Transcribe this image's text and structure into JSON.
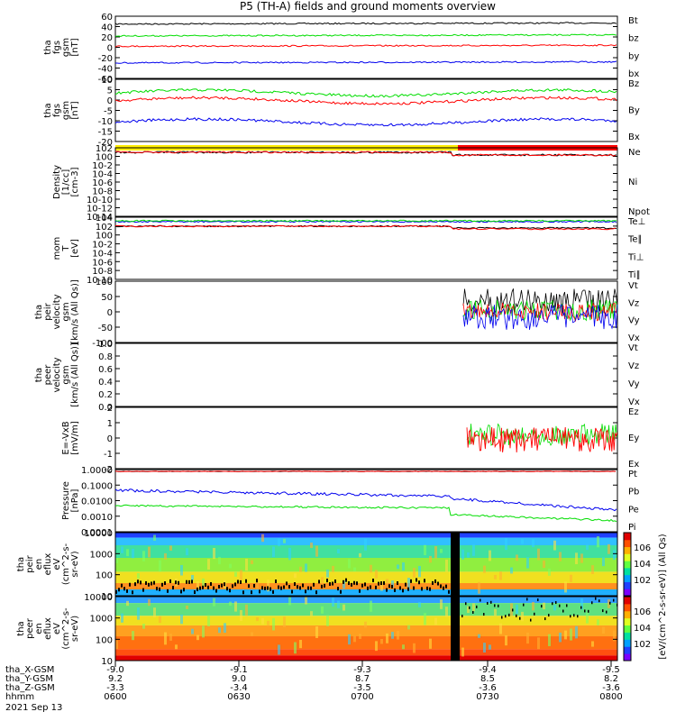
{
  "title": "P5 (TH-A) fields and ground moments overview",
  "colors": {
    "black": "#000000",
    "red": "#ff0000",
    "green": "#00dd00",
    "blue": "#0000ee",
    "yellow": "#ffee00"
  },
  "chart_data": [
    {
      "id": "fgs_gsm",
      "type": "line",
      "ylabel": [
        "tha",
        "fgs",
        "gsm",
        "[nT]"
      ],
      "yticks": [
        "60",
        "40",
        "20",
        "0",
        "-20",
        "-40",
        "-60"
      ],
      "ylim": [
        -60,
        60
      ],
      "series": [
        {
          "name": "Bt",
          "color": "#000000",
          "level": 45
        },
        {
          "name": "bz",
          "color": "#ff0000",
          "level": 2
        },
        {
          "name": "by",
          "color": "#00dd00",
          "level": 22
        },
        {
          "name": "bx",
          "color": "#0000ee",
          "level": -30
        }
      ]
    },
    {
      "id": "fgs_gsm_zoom",
      "type": "line",
      "ylabel": [
        "tha",
        "fgs",
        "gsm",
        "[nT]"
      ],
      "yticks": [
        "10",
        "5",
        "0",
        "-5",
        "-10",
        "-15",
        "-20"
      ],
      "ylim": [
        -22,
        10
      ],
      "series": [
        {
          "name": "Bz",
          "color": "#ff0000",
          "level": -1
        },
        {
          "name": "By",
          "color": "#00dd00",
          "level": 3
        },
        {
          "name": "Bx",
          "color": "#0000ee",
          "level": -12
        }
      ]
    },
    {
      "id": "density",
      "type": "line",
      "ylabel": [
        "Density",
        "[1/cc]",
        "[cm-3]"
      ],
      "yticks": [
        "10^2",
        "10^0",
        "10^-2",
        "10^-4",
        "10^-6",
        "10^-8",
        "10^-10",
        "10^-12",
        "10^-14"
      ],
      "series": [
        {
          "name": "Ne",
          "color": "#ff0000"
        },
        {
          "name": "Ni",
          "color": "#000000"
        },
        {
          "name": "Npot",
          "color": "#0000ee"
        }
      ]
    },
    {
      "id": "temperature",
      "type": "line",
      "ylabel": [
        "mom",
        "T",
        "[eV]"
      ],
      "yticks": [
        "10^4",
        "10^2",
        "10^0",
        "10^-2",
        "10^-4",
        "10^-6",
        "10^-8",
        "10^-10"
      ],
      "series": [
        {
          "name": "Te⊥",
          "color": "#ff0000"
        },
        {
          "name": "Te∥",
          "color": "#000000"
        },
        {
          "name": "Ti⊥",
          "color": "#0000ee"
        },
        {
          "name": "Ti∥",
          "color": "#00dd00"
        }
      ]
    },
    {
      "id": "peir_velocity",
      "type": "line",
      "ylabel": [
        "tha",
        "peir",
        "velocity",
        "gsm",
        "[km/s (All Qs)]"
      ],
      "yticks": [
        "100",
        "50",
        "0",
        "-50",
        "-100"
      ],
      "ylim": [
        -100,
        100
      ],
      "series": [
        {
          "name": "Vt",
          "color": "#000000"
        },
        {
          "name": "Vz",
          "color": "#ff0000"
        },
        {
          "name": "Vy",
          "color": "#00dd00"
        },
        {
          "name": "Vx",
          "color": "#0000ee"
        }
      ]
    },
    {
      "id": "peer_velocity",
      "type": "line",
      "ylabel": [
        "tha",
        "peer",
        "velocity",
        "gsm",
        "[km/s (All Qs)]"
      ],
      "yticks": [
        "1.0",
        "0.8",
        "0.6",
        "0.4",
        "0.2",
        "0.0"
      ],
      "ylim": [
        0,
        1
      ],
      "series": [
        {
          "name": "Vt",
          "color": "#000000"
        },
        {
          "name": "Vz",
          "color": "#ff0000"
        },
        {
          "name": "Vy",
          "color": "#00dd00"
        },
        {
          "name": "Vx",
          "color": "#0000ee"
        }
      ]
    },
    {
      "id": "efield",
      "type": "line",
      "ylabel": [
        "E=-VxB",
        "[mV/m]"
      ],
      "yticks": [
        "2",
        "1",
        "0",
        "-1",
        "-2"
      ],
      "ylim": [
        -2,
        2
      ],
      "series": [
        {
          "name": "Ez",
          "color": "#ff0000"
        },
        {
          "name": "Ey",
          "color": "#00dd00"
        },
        {
          "name": "Ex",
          "color": "#0000ee"
        }
      ]
    },
    {
      "id": "pressure",
      "type": "line",
      "ylabel": [
        "Pressure",
        "[nPa]"
      ],
      "yticks": [
        "1.0000",
        "0.1000",
        "0.0100",
        "0.0010",
        "0.0001"
      ],
      "series": [
        {
          "name": "Pt",
          "color": "#000000"
        },
        {
          "name": "Pb",
          "color": "#ff0000"
        },
        {
          "name": "Pe",
          "color": "#00dd00"
        },
        {
          "name": "Pi",
          "color": "#0000ee"
        }
      ]
    },
    {
      "id": "peir_spec",
      "type": "heatmap",
      "ylabel": [
        "tha",
        "peir",
        "en",
        "eflux",
        "eV",
        "(cm^2-s-",
        "sr-eV)"
      ],
      "yticks": [
        "10000",
        "1000",
        "100",
        "10"
      ]
    },
    {
      "id": "peer_spec",
      "type": "heatmap",
      "ylabel": [
        "tha",
        "peer",
        "en",
        "eflux",
        "eV",
        "(cm^2-s-",
        "sr-eV)"
      ],
      "yticks": [
        "10000",
        "1000",
        "100",
        "10"
      ]
    }
  ],
  "colorbar": {
    "label": "[eV/(cm^2-s-sr-eV)] (All Qs)",
    "ticks": [
      "10^6",
      "10^4",
      "10^2"
    ]
  },
  "xaxis": {
    "rows": [
      {
        "label": "tha_X-GSM",
        "values": [
          "-9.0",
          "-9.1",
          "-9.3",
          "-9.4",
          "-9.5"
        ]
      },
      {
        "label": "tha_Y-GSM",
        "values": [
          "9.2",
          "9.0",
          "8.7",
          "8.5",
          "8.2"
        ]
      },
      {
        "label": "tha_Z-GSM",
        "values": [
          "-3.3",
          "-3.4",
          "-3.5",
          "-3.6",
          "-3.6"
        ]
      },
      {
        "label": "hhmm",
        "values": [
          "0600",
          "0630",
          "0700",
          "0730",
          "0800"
        ]
      }
    ],
    "date": "2021 Sep 13"
  }
}
